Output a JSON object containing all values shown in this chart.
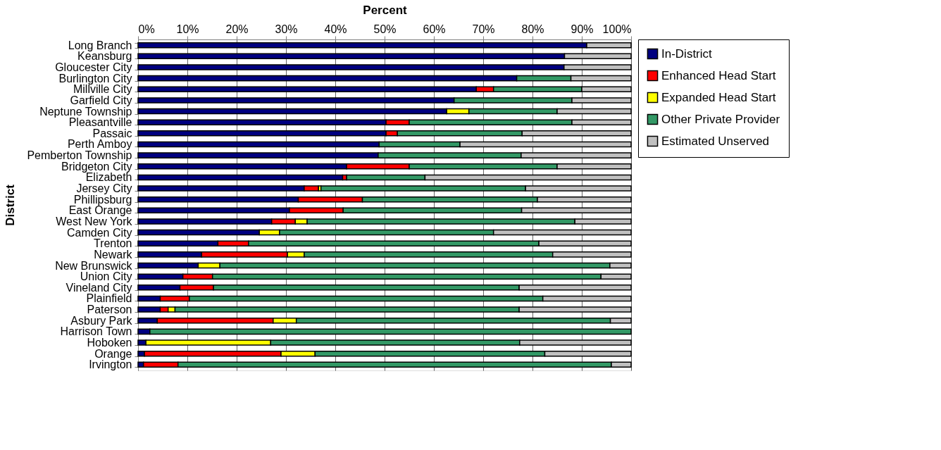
{
  "chart_data": {
    "type": "bar",
    "orientation": "horizontal",
    "stacked": true,
    "xlabel": "Percent",
    "ylabel": "District",
    "legend": "right",
    "grid": "x",
    "xlim": [
      0,
      100
    ],
    "xticks": [
      {
        "value": 0,
        "label": "0%"
      },
      {
        "value": 10,
        "label": "10%"
      },
      {
        "value": 20,
        "label": "20%"
      },
      {
        "value": 30,
        "label": "30%"
      },
      {
        "value": 40,
        "label": "40%"
      },
      {
        "value": 50,
        "label": "50%"
      },
      {
        "value": 60,
        "label": "60%"
      },
      {
        "value": 70,
        "label": "70%"
      },
      {
        "value": 80,
        "label": "80%"
      },
      {
        "value": 90,
        "label": "90%"
      },
      {
        "value": 100,
        "label": "100%"
      }
    ],
    "categories": [
      "Long Branch",
      "Keansburg",
      "Gloucester City",
      "Burlington City",
      "Millville City",
      "Garfield City",
      "Neptune Township",
      "Pleasantville",
      "Passaic",
      "Perth Amboy",
      "Pemberton Township",
      "Bridgeton City",
      "Elizabeth",
      "Jersey City",
      "Phillipsburg",
      "East Orange",
      "West New York",
      "Camden City",
      "Trenton",
      "Newark",
      "New Brunswick",
      "Union City",
      "Vineland City",
      "Plainfield",
      "Paterson",
      "Asbury Park",
      "Harrison Town",
      "Hoboken",
      "Orange",
      "Irvington"
    ],
    "series": [
      {
        "name": "In-District",
        "color": "#000080",
        "values": [
          91,
          86.5,
          86.4,
          76.8,
          68.6,
          64.1,
          62.6,
          50.3,
          50.3,
          48.9,
          48.7,
          42.3,
          41.5,
          33.7,
          32.5,
          30.7,
          27.1,
          24.6,
          16.2,
          12.9,
          12.2,
          9.1,
          8.5,
          4.5,
          4.5,
          3.9,
          2.4,
          1.6,
          1.3,
          1.1
        ]
      },
      {
        "name": "Enhanced Head Start",
        "color": "#ff0000",
        "values": [
          null,
          null,
          null,
          null,
          3.5,
          null,
          null,
          4.7,
          2.3,
          null,
          null,
          12.7,
          0.8,
          2.9,
          13,
          10.9,
          4.8,
          null,
          6.2,
          17.4,
          null,
          6,
          6.8,
          5.9,
          1.6,
          23.5,
          null,
          null,
          27.7,
          7
        ]
      },
      {
        "name": "Expanded Head Start",
        "color": "#ffff00",
        "values": [
          null,
          null,
          null,
          null,
          null,
          null,
          4.5,
          null,
          null,
          null,
          null,
          null,
          null,
          0.5,
          null,
          null,
          2.4,
          4.1,
          null,
          3.4,
          4.4,
          null,
          null,
          null,
          1.4,
          4.7,
          null,
          25.3,
          6.9,
          null
        ]
      },
      {
        "name": "Other Private Provider",
        "color": "#339966",
        "values": [
          null,
          null,
          null,
          11,
          17.9,
          23.9,
          17.9,
          33,
          25.3,
          16.4,
          29,
          30,
          15.9,
          41.5,
          35.5,
          36.2,
          54.3,
          43.4,
          58.9,
          50.4,
          79.1,
          78.8,
          62,
          71.7,
          69.8,
          63.7,
          97.6,
          50.5,
          46.6,
          87.9
        ]
      },
      {
        "name": "Estimated Unserved",
        "color": "#c0c0c0",
        "values": [
          9,
          13.5,
          13.6,
          12.2,
          10,
          12,
          15,
          12,
          22.1,
          34.7,
          22.3,
          15,
          41.8,
          21.4,
          19,
          22.2,
          11.4,
          27.9,
          18.7,
          15.9,
          4.3,
          6.1,
          22.7,
          17.9,
          22.7,
          4.2,
          null,
          22.6,
          17.5,
          4
        ]
      }
    ]
  }
}
